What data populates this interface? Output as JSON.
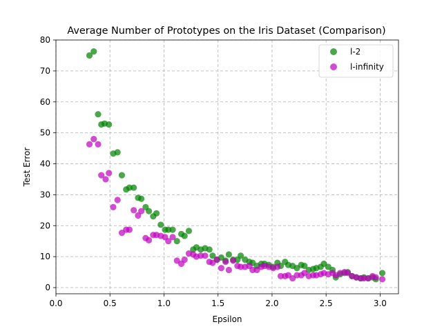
{
  "chart_data": {
    "type": "scatter",
    "title": "Average Number of Prototypes on the Iris Dataset (Comparison)",
    "xlabel": "Epsilon",
    "ylabel": "Test Error",
    "xlim": [
      0.0,
      3.17
    ],
    "ylim": [
      -2,
      80
    ],
    "xticks": [
      "0.0",
      "0.5",
      "1.0",
      "1.5",
      "2.0",
      "2.5",
      "3.0"
    ],
    "yticks": [
      "0",
      "10",
      "20",
      "30",
      "40",
      "50",
      "60",
      "70",
      "80"
    ],
    "grid": true,
    "legend_position": "top-right",
    "series": [
      {
        "name": "l-2",
        "color": "#008000",
        "points": [
          [
            0.31,
            75.0
          ],
          [
            0.35,
            76.3
          ],
          [
            0.39,
            56.0
          ],
          [
            0.42,
            52.7
          ],
          [
            0.45,
            53.0
          ],
          [
            0.49,
            52.7
          ],
          [
            0.53,
            43.3
          ],
          [
            0.57,
            43.7
          ],
          [
            0.61,
            36.3
          ],
          [
            0.65,
            31.7
          ],
          [
            0.68,
            32.3
          ],
          [
            0.72,
            32.3
          ],
          [
            0.76,
            29.0
          ],
          [
            0.79,
            28.7
          ],
          [
            0.83,
            26.0
          ],
          [
            0.86,
            24.7
          ],
          [
            0.9,
            23.0
          ],
          [
            0.93,
            24.0
          ],
          [
            0.97,
            20.3
          ],
          [
            1.01,
            18.7
          ],
          [
            1.04,
            18.7
          ],
          [
            1.08,
            18.7
          ],
          [
            1.12,
            15.0
          ],
          [
            1.16,
            17.3
          ],
          [
            1.19,
            16.7
          ],
          [
            1.23,
            18.3
          ],
          [
            1.27,
            12.3
          ],
          [
            1.3,
            13.0
          ],
          [
            1.34,
            12.3
          ],
          [
            1.38,
            12.7
          ],
          [
            1.42,
            12.3
          ],
          [
            1.45,
            10.3
          ],
          [
            1.49,
            9.0
          ],
          [
            1.53,
            9.7
          ],
          [
            1.57,
            8.7
          ],
          [
            1.6,
            10.7
          ],
          [
            1.64,
            9.0
          ],
          [
            1.68,
            9.0
          ],
          [
            1.71,
            10.3
          ],
          [
            1.75,
            9.0
          ],
          [
            1.79,
            8.3
          ],
          [
            1.82,
            8.0
          ],
          [
            1.86,
            7.0
          ],
          [
            1.9,
            7.7
          ],
          [
            1.93,
            7.7
          ],
          [
            1.97,
            7.3
          ],
          [
            2.01,
            6.7
          ],
          [
            2.05,
            8.0
          ],
          [
            2.08,
            7.0
          ],
          [
            2.12,
            8.3
          ],
          [
            2.15,
            7.3
          ],
          [
            2.19,
            7.0
          ],
          [
            2.23,
            6.3
          ],
          [
            2.27,
            7.3
          ],
          [
            2.3,
            7.0
          ],
          [
            2.34,
            5.7
          ],
          [
            2.38,
            6.0
          ],
          [
            2.41,
            6.3
          ],
          [
            2.45,
            6.7
          ],
          [
            2.48,
            7.7
          ],
          [
            2.52,
            6.7
          ],
          [
            2.56,
            5.7
          ],
          [
            2.59,
            3.3
          ],
          [
            2.63,
            4.3
          ],
          [
            2.67,
            4.7
          ],
          [
            2.7,
            5.0
          ],
          [
            2.74,
            3.7
          ],
          [
            2.78,
            3.3
          ],
          [
            2.82,
            3.0
          ],
          [
            2.85,
            3.3
          ],
          [
            2.89,
            3.0
          ],
          [
            2.93,
            3.3
          ],
          [
            2.96,
            2.7
          ],
          [
            3.02,
            4.7
          ]
        ]
      },
      {
        "name": "l-infinity",
        "color": "#bf00bf",
        "points": [
          [
            0.31,
            46.3
          ],
          [
            0.35,
            48.0
          ],
          [
            0.39,
            46.3
          ],
          [
            0.42,
            36.3
          ],
          [
            0.46,
            35.0
          ],
          [
            0.49,
            37.0
          ],
          [
            0.53,
            26.0
          ],
          [
            0.57,
            28.3
          ],
          [
            0.61,
            17.7
          ],
          [
            0.65,
            18.7
          ],
          [
            0.68,
            18.7
          ],
          [
            0.72,
            25.0
          ],
          [
            0.76,
            23.3
          ],
          [
            0.79,
            24.7
          ],
          [
            0.83,
            16.0
          ],
          [
            0.86,
            15.3
          ],
          [
            0.9,
            17.0
          ],
          [
            0.93,
            17.0
          ],
          [
            0.97,
            16.7
          ],
          [
            1.01,
            16.3
          ],
          [
            1.04,
            15.0
          ],
          [
            1.08,
            16.3
          ],
          [
            1.12,
            8.7
          ],
          [
            1.16,
            7.7
          ],
          [
            1.19,
            9.0
          ],
          [
            1.23,
            11.0
          ],
          [
            1.27,
            10.7
          ],
          [
            1.3,
            10.0
          ],
          [
            1.34,
            10.3
          ],
          [
            1.38,
            10.3
          ],
          [
            1.42,
            8.3
          ],
          [
            1.45,
            8.0
          ],
          [
            1.49,
            9.0
          ],
          [
            1.53,
            6.3
          ],
          [
            1.57,
            8.3
          ],
          [
            1.6,
            5.7
          ],
          [
            1.64,
            8.7
          ],
          [
            1.68,
            7.0
          ],
          [
            1.71,
            6.7
          ],
          [
            1.75,
            6.7
          ],
          [
            1.79,
            7.0
          ],
          [
            1.82,
            5.7
          ],
          [
            1.86,
            5.7
          ],
          [
            1.9,
            6.7
          ],
          [
            1.93,
            7.0
          ],
          [
            1.97,
            6.7
          ],
          [
            2.01,
            6.3
          ],
          [
            2.05,
            6.7
          ],
          [
            2.08,
            3.7
          ],
          [
            2.12,
            3.7
          ],
          [
            2.15,
            4.0
          ],
          [
            2.19,
            3.0
          ],
          [
            2.23,
            4.0
          ],
          [
            2.27,
            4.0
          ],
          [
            2.3,
            4.7
          ],
          [
            2.34,
            3.7
          ],
          [
            2.38,
            4.0
          ],
          [
            2.41,
            4.0
          ],
          [
            2.45,
            4.3
          ],
          [
            2.48,
            4.7
          ],
          [
            2.52,
            4.3
          ],
          [
            2.56,
            4.7
          ],
          [
            2.59,
            4.0
          ],
          [
            2.63,
            4.7
          ],
          [
            2.67,
            5.0
          ],
          [
            2.7,
            4.7
          ],
          [
            2.74,
            3.7
          ],
          [
            2.78,
            3.3
          ],
          [
            2.82,
            3.0
          ],
          [
            2.85,
            3.0
          ],
          [
            2.89,
            3.0
          ],
          [
            2.93,
            3.7
          ],
          [
            2.96,
            3.3
          ],
          [
            3.02,
            2.7
          ]
        ]
      }
    ]
  }
}
